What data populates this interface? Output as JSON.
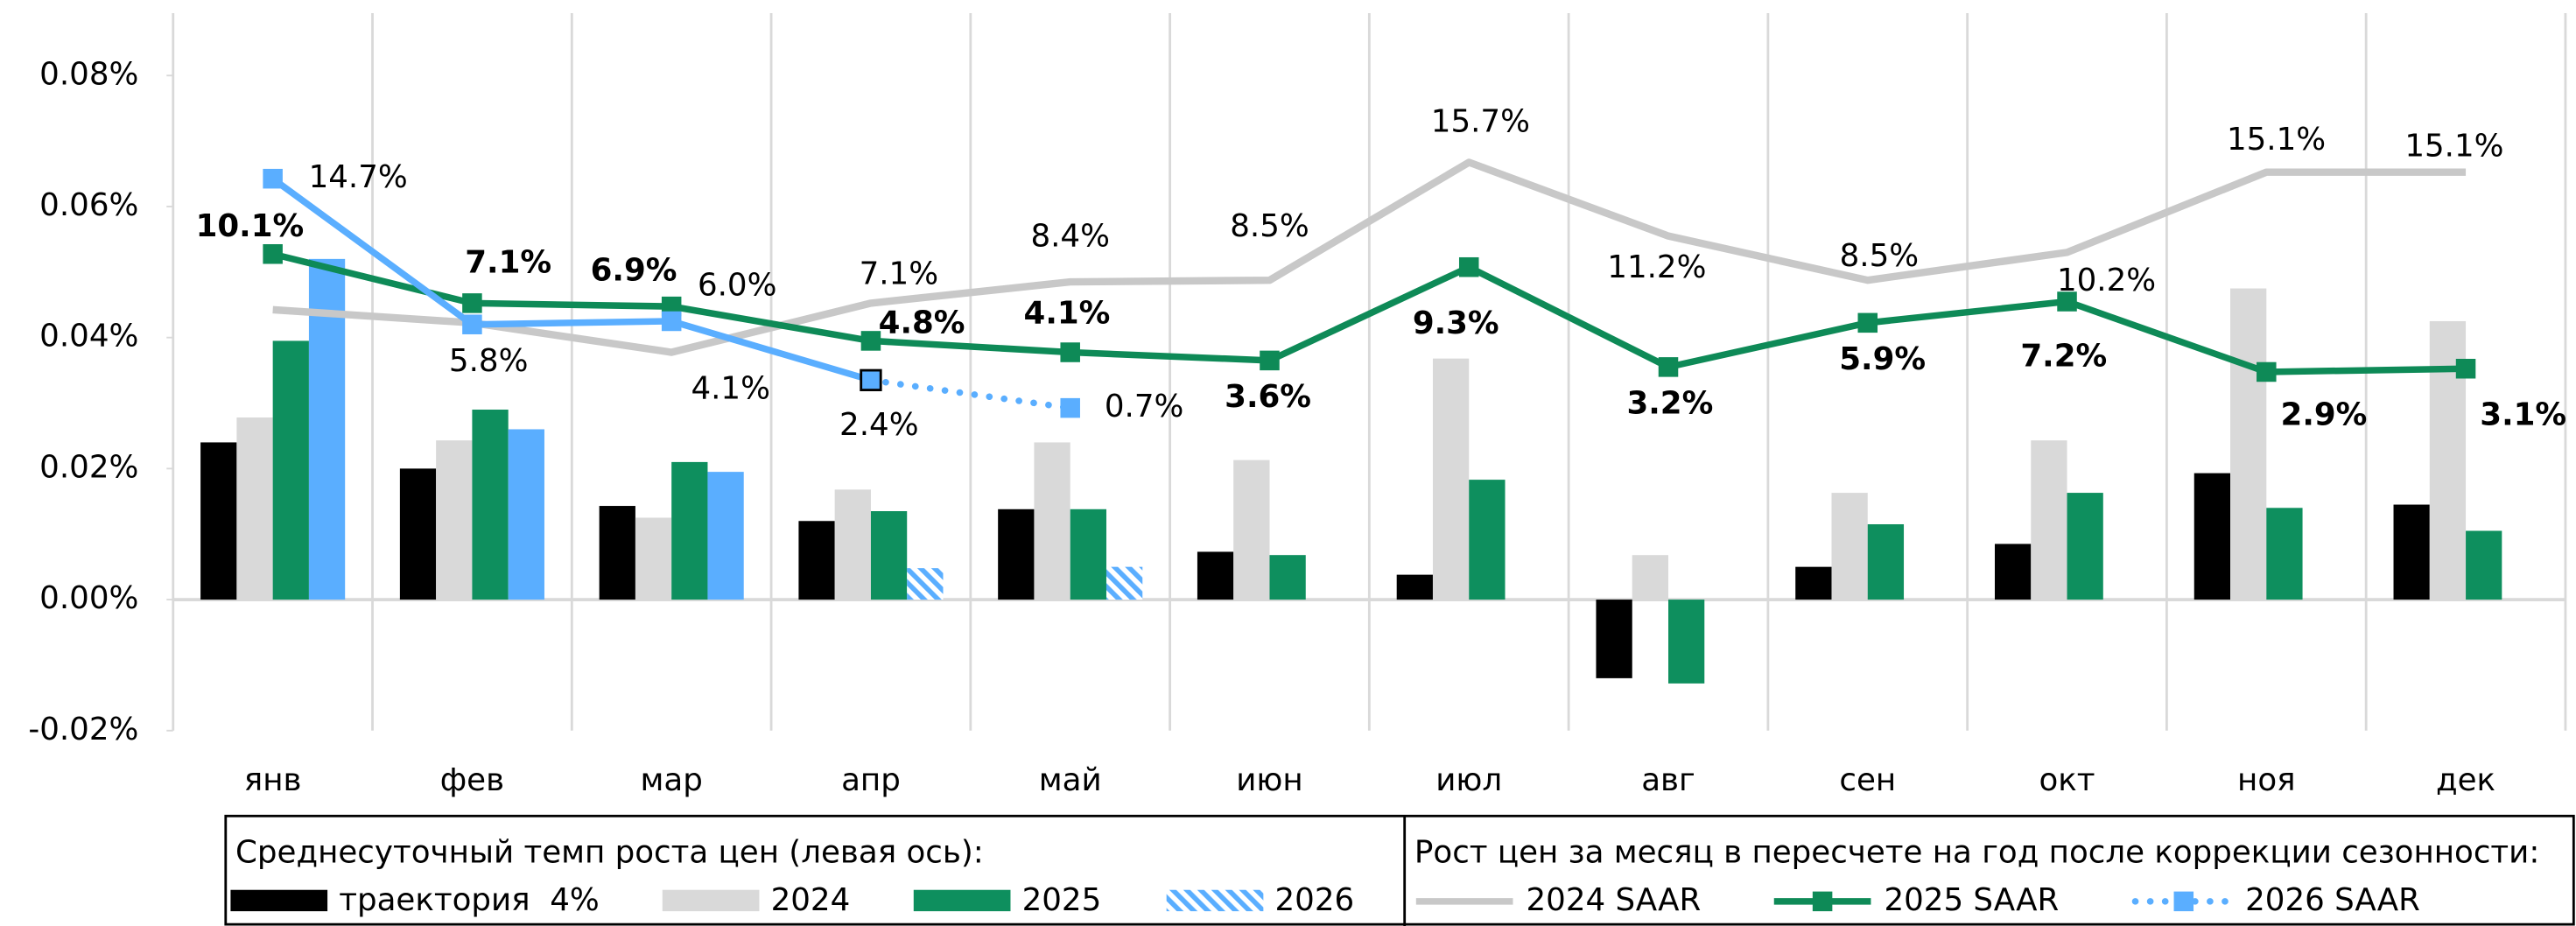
{
  "chart_data": {
    "type": "bar",
    "categories": [
      "янв",
      "фев",
      "мар",
      "апр",
      "май",
      "июн",
      "июл",
      "авг",
      "сен",
      "окт",
      "ноя",
      "дек"
    ],
    "ylim": [
      -0.02,
      0.08
    ],
    "yticks": [
      {
        "value": -0.02,
        "label": "-0.02%"
      },
      {
        "value": 0,
        "label": "0.00%"
      },
      {
        "value": 0.02,
        "label": "0.02%"
      },
      {
        "value": 0.04,
        "label": "0.04%"
      },
      {
        "value": 0.06,
        "label": "0.06%"
      },
      {
        "value": 0.08,
        "label": "0.08%"
      }
    ],
    "y2lim": [
      -19,
      21
    ],
    "grid": "vertical",
    "forecast_from_index": 3,
    "legend_titles": [
      "Среднесуточный темп роста цен (левая ось):",
      "Рост цен за месяц в пересчете на год после коррекции сезонности:"
    ],
    "series": [
      {
        "name": "траектория  4%",
        "type": "bar",
        "color": "#000000",
        "values": [
          0.024,
          0.02,
          0.0143,
          0.012,
          0.0138,
          0.0073,
          0.0038,
          -0.012,
          0.005,
          0.0085,
          0.0193,
          0.0145
        ]
      },
      {
        "name": "2024",
        "type": "bar",
        "color": "#d9d9d9",
        "values": [
          0.0278,
          0.0243,
          0.0125,
          0.0168,
          0.024,
          0.0213,
          0.0368,
          0.0068,
          0.0163,
          0.0243,
          0.0475,
          0.0425
        ]
      },
      {
        "name": "2025",
        "type": "bar",
        "color": "#0e8f5e",
        "values": [
          0.0395,
          0.029,
          0.021,
          0.0135,
          0.0138,
          0.0068,
          0.0183,
          -0.0128,
          0.0115,
          0.0163,
          0.014,
          0.0105
        ]
      },
      {
        "name": "2026",
        "type": "bar",
        "color": "#5aaeff",
        "values": [
          0.052,
          0.026,
          0.0195,
          0.0048,
          0.005,
          null,
          null,
          null,
          null,
          null,
          null,
          null
        ]
      },
      {
        "name": "2024 SAAR",
        "type": "line",
        "axis": "y2",
        "color": "#c8c8c8",
        "values": [
          6.7,
          5.9,
          4.1,
          7.1,
          8.4,
          8.5,
          15.7,
          11.2,
          8.5,
          10.2,
          15.1,
          15.1
        ],
        "value_labels": [
          null,
          null,
          "4.1%",
          "7.1%",
          "8.4%",
          "8.5%",
          "15.7%",
          "11.2%",
          "8.5%",
          "10.2%",
          "15.1%",
          "15.1%"
        ]
      },
      {
        "name": "2025 SAAR",
        "type": "line",
        "axis": "y2",
        "color": "#0e8a57",
        "values": [
          10.1,
          7.1,
          6.9,
          4.8,
          4.1,
          3.6,
          9.3,
          3.2,
          5.9,
          7.2,
          2.9,
          3.1
        ],
        "value_labels": [
          "10.1%",
          "7.1%",
          "6.9%",
          "4.8%",
          "4.1%",
          "3.6%",
          "9.3%",
          "3.2%",
          "5.9%",
          "7.2%",
          "2.9%",
          "3.1%"
        ]
      },
      {
        "name": "2026 SAAR",
        "type": "line",
        "axis": "y2",
        "color": "#5aaeff",
        "values": [
          14.7,
          5.8,
          6.0,
          2.4,
          0.7,
          null,
          null,
          null,
          null,
          null,
          null,
          null
        ],
        "value_labels": [
          "14.7%",
          "5.8%",
          "6.0%",
          "2.4%",
          "0.7%",
          null,
          null,
          null,
          null,
          null,
          null,
          null
        ]
      }
    ]
  }
}
